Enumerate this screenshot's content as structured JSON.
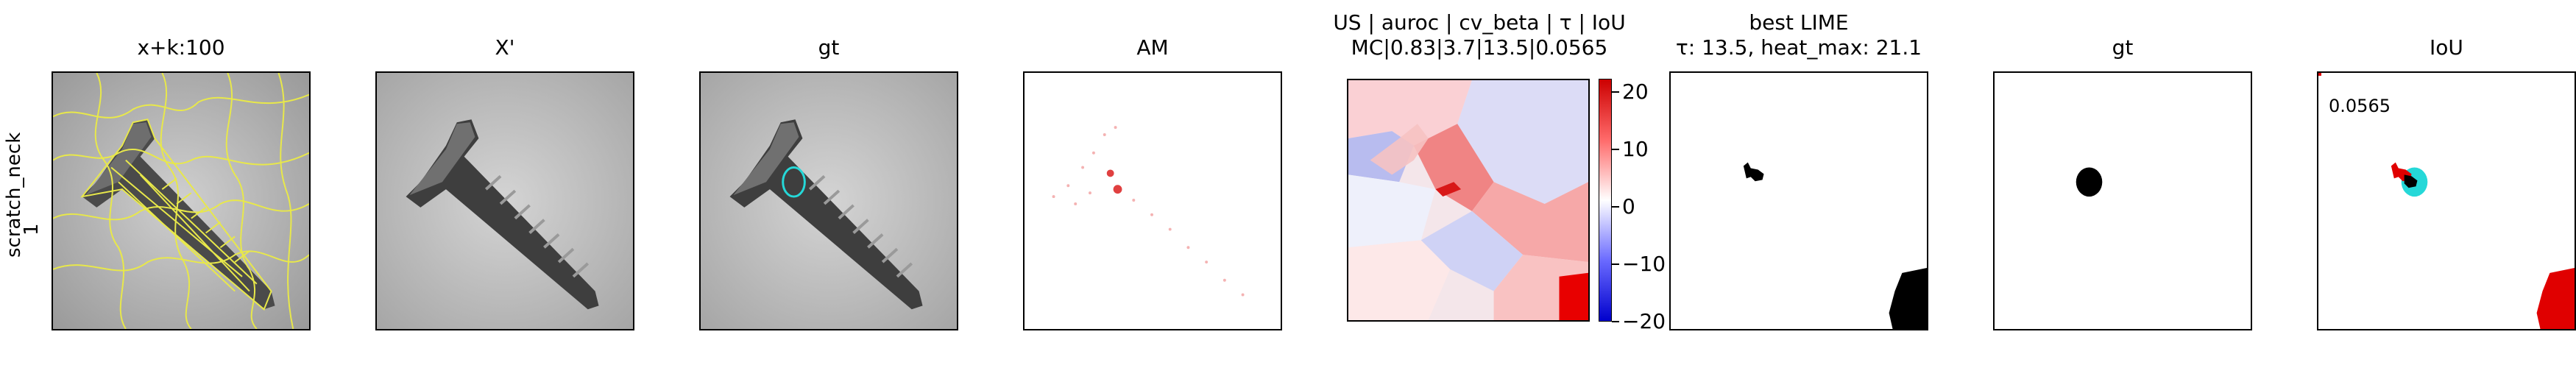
{
  "row_label": {
    "line1": "scratch_neck",
    "line2": "1"
  },
  "panels": [
    {
      "title": "x+k:100"
    },
    {
      "title": "X'"
    },
    {
      "title": "gt"
    },
    {
      "title": "AM"
    },
    {
      "title_line1": "US | auroc | cv_beta | τ | IoU",
      "title_line2": "MC|0.83|3.7|13.5|0.0565"
    },
    {
      "title_line1": "best LIME",
      "title_line2": "τ: 13.5, heat_max: 21.1"
    },
    {
      "title": "gt"
    },
    {
      "title": "IoU"
    }
  ],
  "iou_value": "0.0565",
  "colorbar": {
    "ticks": [
      "20",
      "10",
      "0",
      "−10",
      "−20"
    ],
    "colors": {
      "top": "#e00000",
      "mid": "#ffffff",
      "bottom": "#0000e0"
    }
  },
  "colors": {
    "overlay_yellow": "#e8e84a",
    "gt_cyan": "#25d8d8",
    "heat_red": "#ee1a1a",
    "neutral_gray": "#c8c8c8"
  }
}
